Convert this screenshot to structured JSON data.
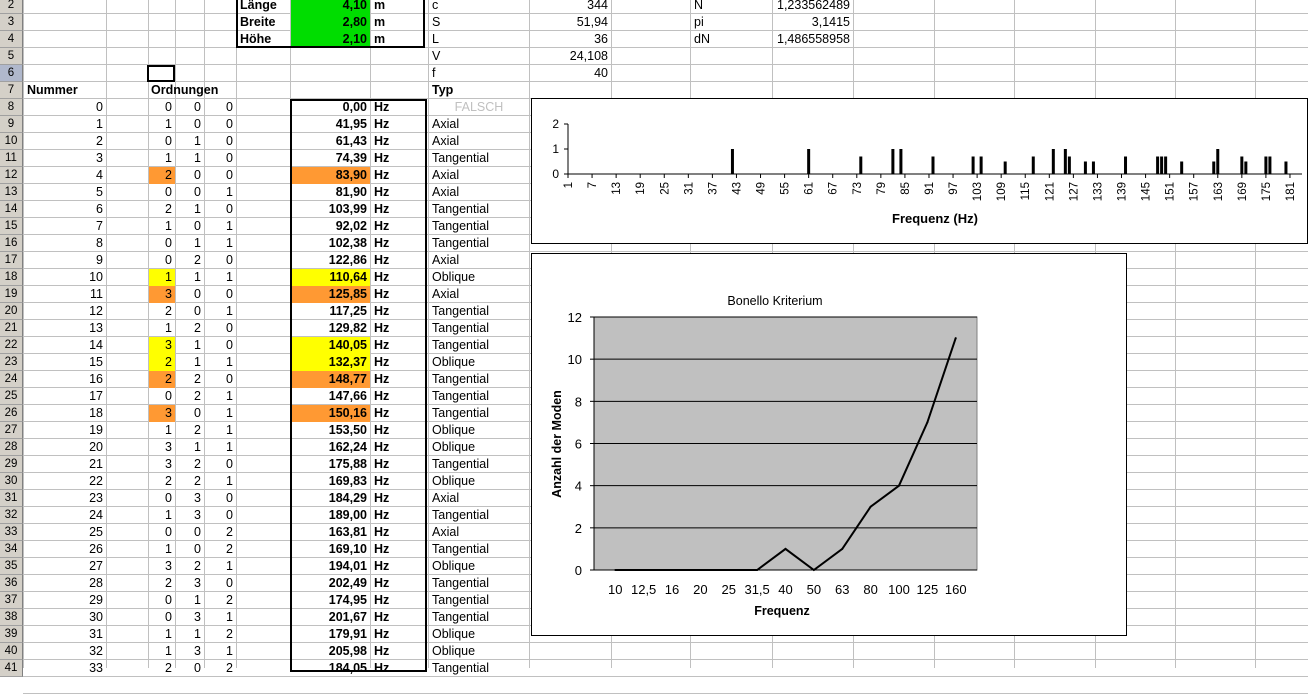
{
  "dims": [
    {
      "label": "Länge",
      "value": "4,10",
      "unit": "m"
    },
    {
      "label": "Breite",
      "value": "2,80",
      "unit": "m"
    },
    {
      "label": "Höhe",
      "value": "2,10",
      "unit": "m"
    }
  ],
  "constants_left": [
    {
      "label": "c",
      "value": "344"
    },
    {
      "label": "S",
      "value": "51,94"
    },
    {
      "label": "L",
      "value": "36"
    },
    {
      "label": "V",
      "value": "24,108"
    },
    {
      "label": "f",
      "value": "40"
    }
  ],
  "constants_right": [
    {
      "label": "N",
      "value": "1,233562489"
    },
    {
      "label": "pi",
      "value": "3,1415"
    },
    {
      "label": "dN",
      "value": "1,486558958"
    }
  ],
  "headers": {
    "nummer": "Nummer",
    "ordnungen": "Ordnungen",
    "typ": "Typ"
  },
  "falsch": "FALSCH",
  "unit_hz": "Hz",
  "row_numbers": [
    "2",
    "3",
    "4",
    "5",
    "6",
    "7",
    "8",
    "9",
    "10",
    "11",
    "12",
    "13",
    "14",
    "15",
    "16",
    "17",
    "18",
    "19",
    "20",
    "21",
    "22",
    "23",
    "24",
    "25",
    "26",
    "27",
    "28",
    "29",
    "30",
    "31",
    "32",
    "33",
    "34",
    "35",
    "36",
    "37",
    "38",
    "39",
    "40",
    "41"
  ],
  "modes": [
    {
      "n": "0",
      "a": "0",
      "b": "0",
      "c": "0",
      "f": "0,00",
      "typ": "",
      "hl": ""
    },
    {
      "n": "1",
      "a": "1",
      "b": "0",
      "c": "0",
      "f": "41,95",
      "typ": "Axial",
      "hl": ""
    },
    {
      "n": "2",
      "a": "0",
      "b": "1",
      "c": "0",
      "f": "61,43",
      "typ": "Axial",
      "hl": ""
    },
    {
      "n": "3",
      "a": "1",
      "b": "1",
      "c": "0",
      "f": "74,39",
      "typ": "Tangential",
      "hl": ""
    },
    {
      "n": "4",
      "a": "2",
      "b": "0",
      "c": "0",
      "f": "83,90",
      "typ": "Axial",
      "hl": "orange"
    },
    {
      "n": "5",
      "a": "0",
      "b": "0",
      "c": "1",
      "f": "81,90",
      "typ": "Axial",
      "hl": ""
    },
    {
      "n": "6",
      "a": "2",
      "b": "1",
      "c": "0",
      "f": "103,99",
      "typ": "Tangential",
      "hl": ""
    },
    {
      "n": "7",
      "a": "1",
      "b": "0",
      "c": "1",
      "f": "92,02",
      "typ": "Tangential",
      "hl": ""
    },
    {
      "n": "8",
      "a": "0",
      "b": "1",
      "c": "1",
      "f": "102,38",
      "typ": "Tangential",
      "hl": ""
    },
    {
      "n": "9",
      "a": "0",
      "b": "2",
      "c": "0",
      "f": "122,86",
      "typ": "Axial",
      "hl": ""
    },
    {
      "n": "10",
      "a": "1",
      "b": "1",
      "c": "1",
      "f": "110,64",
      "typ": "Oblique",
      "hl": "yellow"
    },
    {
      "n": "11",
      "a": "3",
      "b": "0",
      "c": "0",
      "f": "125,85",
      "typ": "Axial",
      "hl": "orange"
    },
    {
      "n": "12",
      "a": "2",
      "b": "0",
      "c": "1",
      "f": "117,25",
      "typ": "Tangential",
      "hl": ""
    },
    {
      "n": "13",
      "a": "1",
      "b": "2",
      "c": "0",
      "f": "129,82",
      "typ": "Tangential",
      "hl": ""
    },
    {
      "n": "14",
      "a": "3",
      "b": "1",
      "c": "0",
      "f": "140,05",
      "typ": "Tangential",
      "hl": "yellow"
    },
    {
      "n": "15",
      "a": "2",
      "b": "1",
      "c": "1",
      "f": "132,37",
      "typ": "Oblique",
      "hl": "yellow"
    },
    {
      "n": "16",
      "a": "2",
      "b": "2",
      "c": "0",
      "f": "148,77",
      "typ": "Tangential",
      "hl": "orange"
    },
    {
      "n": "17",
      "a": "0",
      "b": "2",
      "c": "1",
      "f": "147,66",
      "typ": "Tangential",
      "hl": ""
    },
    {
      "n": "18",
      "a": "3",
      "b": "0",
      "c": "1",
      "f": "150,16",
      "typ": "Tangential",
      "hl": "orange"
    },
    {
      "n": "19",
      "a": "1",
      "b": "2",
      "c": "1",
      "f": "153,50",
      "typ": "Oblique",
      "hl": ""
    },
    {
      "n": "20",
      "a": "3",
      "b": "1",
      "c": "1",
      "f": "162,24",
      "typ": "Oblique",
      "hl": ""
    },
    {
      "n": "21",
      "a": "3",
      "b": "2",
      "c": "0",
      "f": "175,88",
      "typ": "Tangential",
      "hl": ""
    },
    {
      "n": "22",
      "a": "2",
      "b": "2",
      "c": "1",
      "f": "169,83",
      "typ": "Oblique",
      "hl": ""
    },
    {
      "n": "23",
      "a": "0",
      "b": "3",
      "c": "0",
      "f": "184,29",
      "typ": "Axial",
      "hl": ""
    },
    {
      "n": "24",
      "a": "1",
      "b": "3",
      "c": "0",
      "f": "189,00",
      "typ": "Tangential",
      "hl": ""
    },
    {
      "n": "25",
      "a": "0",
      "b": "0",
      "c": "2",
      "f": "163,81",
      "typ": "Axial",
      "hl": ""
    },
    {
      "n": "26",
      "a": "1",
      "b": "0",
      "c": "2",
      "f": "169,10",
      "typ": "Tangential",
      "hl": ""
    },
    {
      "n": "27",
      "a": "3",
      "b": "2",
      "c": "1",
      "f": "194,01",
      "typ": "Oblique",
      "hl": ""
    },
    {
      "n": "28",
      "a": "2",
      "b": "3",
      "c": "0",
      "f": "202,49",
      "typ": "Tangential",
      "hl": ""
    },
    {
      "n": "29",
      "a": "0",
      "b": "1",
      "c": "2",
      "f": "174,95",
      "typ": "Tangential",
      "hl": ""
    },
    {
      "n": "30",
      "a": "0",
      "b": "3",
      "c": "1",
      "f": "201,67",
      "typ": "Tangential",
      "hl": ""
    },
    {
      "n": "31",
      "a": "1",
      "b": "1",
      "c": "2",
      "f": "179,91",
      "typ": "Oblique",
      "hl": ""
    },
    {
      "n": "32",
      "a": "1",
      "b": "3",
      "c": "1",
      "f": "205,98",
      "typ": "Oblique",
      "hl": ""
    },
    {
      "n": "33",
      "a": "2",
      "b": "0",
      "c": "2",
      "f": "184,05",
      "typ": "Tangential",
      "hl": ""
    }
  ],
  "colors": {
    "highlight_yellow": "#ffff00",
    "highlight_orange": "#ff9933",
    "dim_green": "#00dd00",
    "plot_bg": "#c0c0c0"
  },
  "chart_data": [
    {
      "type": "bar",
      "xlabel": "Frequenz (Hz)",
      "ylim": [
        0,
        2
      ],
      "yticks": [
        "0",
        "1",
        "2"
      ],
      "xticks": [
        "1",
        "7",
        "13",
        "19",
        "25",
        "31",
        "37",
        "43",
        "49",
        "55",
        "61",
        "67",
        "73",
        "79",
        "85",
        "91",
        "97",
        "103",
        "109",
        "115",
        "121",
        "127",
        "133",
        "139",
        "145",
        "151",
        "157",
        "163",
        "169",
        "175",
        "181"
      ],
      "bar_x": [
        42,
        61,
        74,
        82,
        84,
        92,
        102,
        104,
        110,
        117,
        122,
        125,
        126,
        130,
        132,
        140,
        148,
        149,
        150,
        154,
        162,
        163,
        169,
        170,
        175,
        176,
        180
      ],
      "bar_h": [
        1,
        1,
        0.7,
        1,
        1,
        0.7,
        0.7,
        0.7,
        0.5,
        0.7,
        1,
        1,
        0.7,
        0.5,
        0.5,
        0.7,
        0.7,
        0.7,
        0.7,
        0.5,
        0.5,
        1,
        0.7,
        0.5,
        0.7,
        0.7,
        0.5
      ],
      "xmin": 1,
      "xmax": 184
    },
    {
      "type": "line",
      "title": "Bonello Kriterium",
      "xlabel": "Frequenz",
      "ylabel": "Anzahl der Moden",
      "categories": [
        "10",
        "12,5",
        "16",
        "20",
        "25",
        "31,5",
        "40",
        "50",
        "63",
        "80",
        "100",
        "125",
        "160"
      ],
      "values": [
        0,
        0,
        0,
        0,
        0,
        0,
        1,
        0,
        1,
        3,
        4,
        7,
        11
      ],
      "ylim": [
        0,
        12
      ],
      "yticks": [
        "0",
        "2",
        "4",
        "6",
        "8",
        "10",
        "12"
      ],
      "grid": true
    }
  ]
}
